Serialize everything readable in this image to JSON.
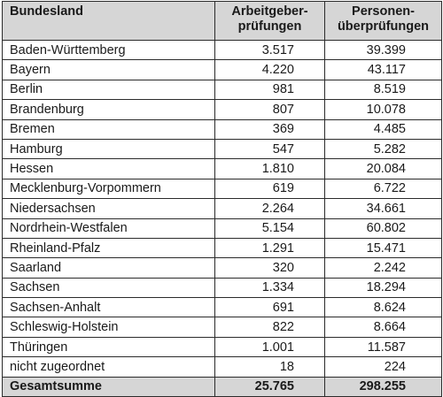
{
  "header": {
    "col1": "Bundesland",
    "col2_line1": "Arbeitgeber-",
    "col2_line2": "prüfungen",
    "col3_line1": "Personen-",
    "col3_line2": "überprüfungen"
  },
  "rows": [
    {
      "name": "Baden-Württemberg",
      "arbeitgeber": "3.517",
      "personen": "39.399"
    },
    {
      "name": "Bayern",
      "arbeitgeber": "4.220",
      "personen": "43.117"
    },
    {
      "name": "Berlin",
      "arbeitgeber": "981",
      "personen": "8.519"
    },
    {
      "name": "Brandenburg",
      "arbeitgeber": "807",
      "personen": "10.078"
    },
    {
      "name": "Bremen",
      "arbeitgeber": "369",
      "personen": "4.485"
    },
    {
      "name": "Hamburg",
      "arbeitgeber": "547",
      "personen": "5.282"
    },
    {
      "name": "Hessen",
      "arbeitgeber": "1.810",
      "personen": "20.084"
    },
    {
      "name": "Mecklenburg-Vorpommern",
      "arbeitgeber": "619",
      "personen": "6.722"
    },
    {
      "name": "Niedersachsen",
      "arbeitgeber": "2.264",
      "personen": "34.661"
    },
    {
      "name": "Nordrhein-Westfalen",
      "arbeitgeber": "5.154",
      "personen": "60.802"
    },
    {
      "name": "Rheinland-Pfalz",
      "arbeitgeber": "1.291",
      "personen": "15.471"
    },
    {
      "name": "Saarland",
      "arbeitgeber": "320",
      "personen": "2.242"
    },
    {
      "name": "Sachsen",
      "arbeitgeber": "1.334",
      "personen": "18.294"
    },
    {
      "name": "Sachsen-Anhalt",
      "arbeitgeber": "691",
      "personen": "8.624"
    },
    {
      "name": "Schleswig-Holstein",
      "arbeitgeber": "822",
      "personen": "8.664"
    },
    {
      "name": "Thüringen",
      "arbeitgeber": "1.001",
      "personen": "11.587"
    },
    {
      "name": "nicht zugeordnet",
      "arbeitgeber": "18",
      "personen": "224"
    }
  ],
  "total": {
    "name": "Gesamtsumme",
    "arbeitgeber": "25.765",
    "personen": "298.255"
  },
  "colors": {
    "header_bg": "#d6d6d6",
    "border": "#2b2b2b"
  }
}
